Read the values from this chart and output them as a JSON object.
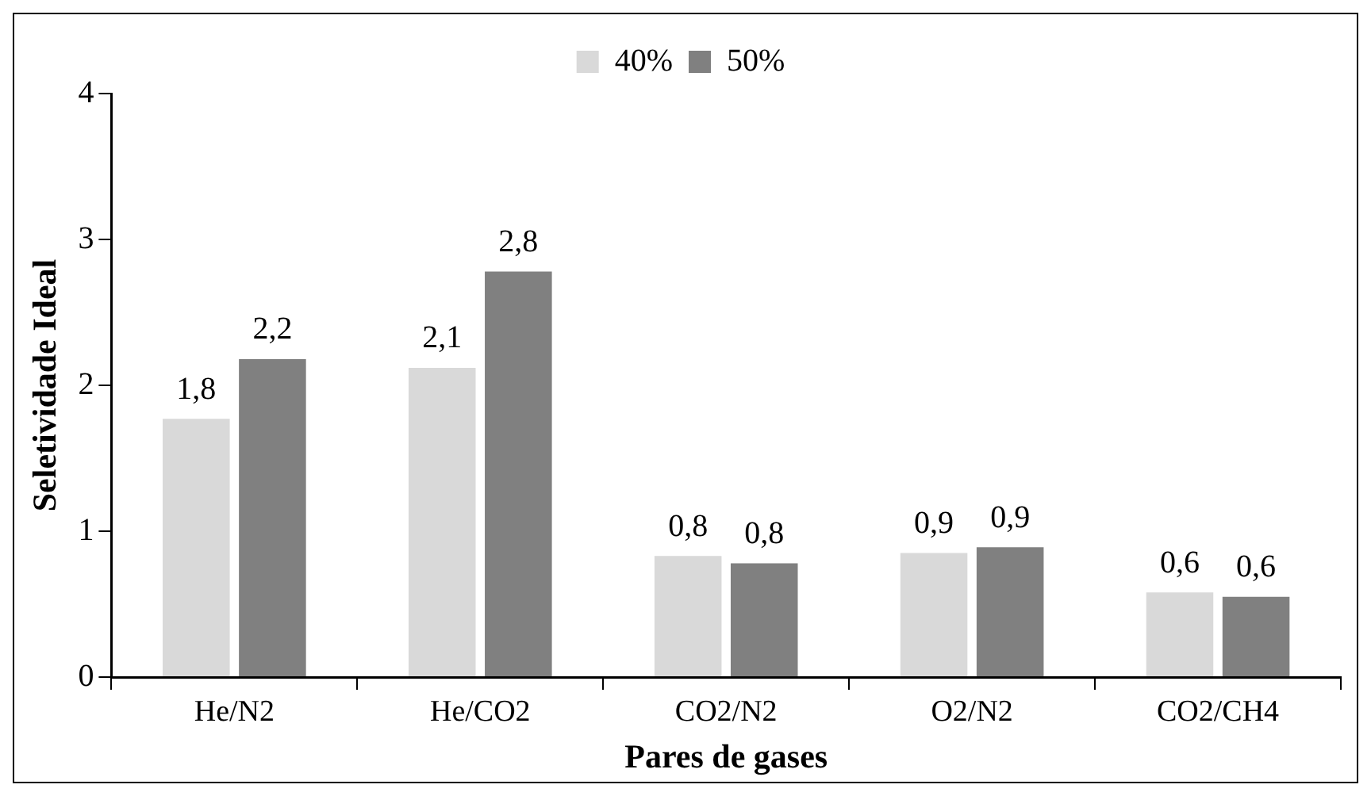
{
  "chart_data": {
    "type": "bar",
    "xlabel": "Pares de gases",
    "ylabel": "Seletividade Ideal",
    "categories": [
      "He/N2",
      "He/CO2",
      "CO2/N2",
      "O2/N2",
      "CO2/CH4"
    ],
    "series": [
      {
        "name": "40%",
        "color": "#d9d9d9",
        "values": [
          1.77,
          2.12,
          0.83,
          0.85,
          0.58
        ],
        "value_labels": [
          "1,8",
          "2,1",
          "0,8",
          "0,9",
          "0,6"
        ]
      },
      {
        "name": "50%",
        "color": "#808080",
        "values": [
          2.18,
          2.78,
          0.78,
          0.89,
          0.55
        ],
        "value_labels": [
          "2,2",
          "2,8",
          "0,8",
          "0,9",
          "0,6"
        ]
      }
    ],
    "ylim": [
      0,
      4
    ],
    "yticks": [
      0,
      1,
      2,
      3,
      4
    ],
    "grid": false,
    "legend": "top"
  }
}
